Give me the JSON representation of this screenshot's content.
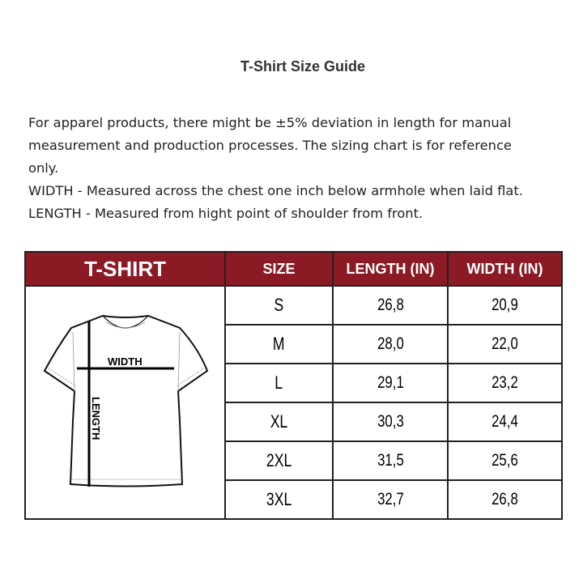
{
  "title": "T-Shirt Size Guide",
  "description": [
    "For apparel products, there might be ±5% deviation in length for manual",
    "measurement and production processes. The sizing chart is for reference",
    "only.",
    "WIDTH - Measured across the chest one inch below armhole when laid flat.",
    "LENGTH - Measured from hight point of shoulder from front."
  ],
  "table": {
    "headers": [
      "T-SHIRT",
      "SIZE",
      "LENGTH (IN)",
      "WIDTH (IN)"
    ],
    "header_color": "#8b1a24",
    "rows": [
      {
        "size": "S",
        "length": "26,8",
        "width": "20,9"
      },
      {
        "size": "M",
        "length": "28,0",
        "width": "22,0"
      },
      {
        "size": "L",
        "length": "29,1",
        "width": "23,2"
      },
      {
        "size": "XL",
        "length": "30,3",
        "width": "24,4"
      },
      {
        "size": "2XL",
        "length": "31,5",
        "width": "25,6"
      },
      {
        "size": "3XL",
        "length": "32,7",
        "width": "26,8"
      }
    ]
  },
  "diagram": {
    "width_label": "WIDTH",
    "length_label": "LENGTH"
  }
}
